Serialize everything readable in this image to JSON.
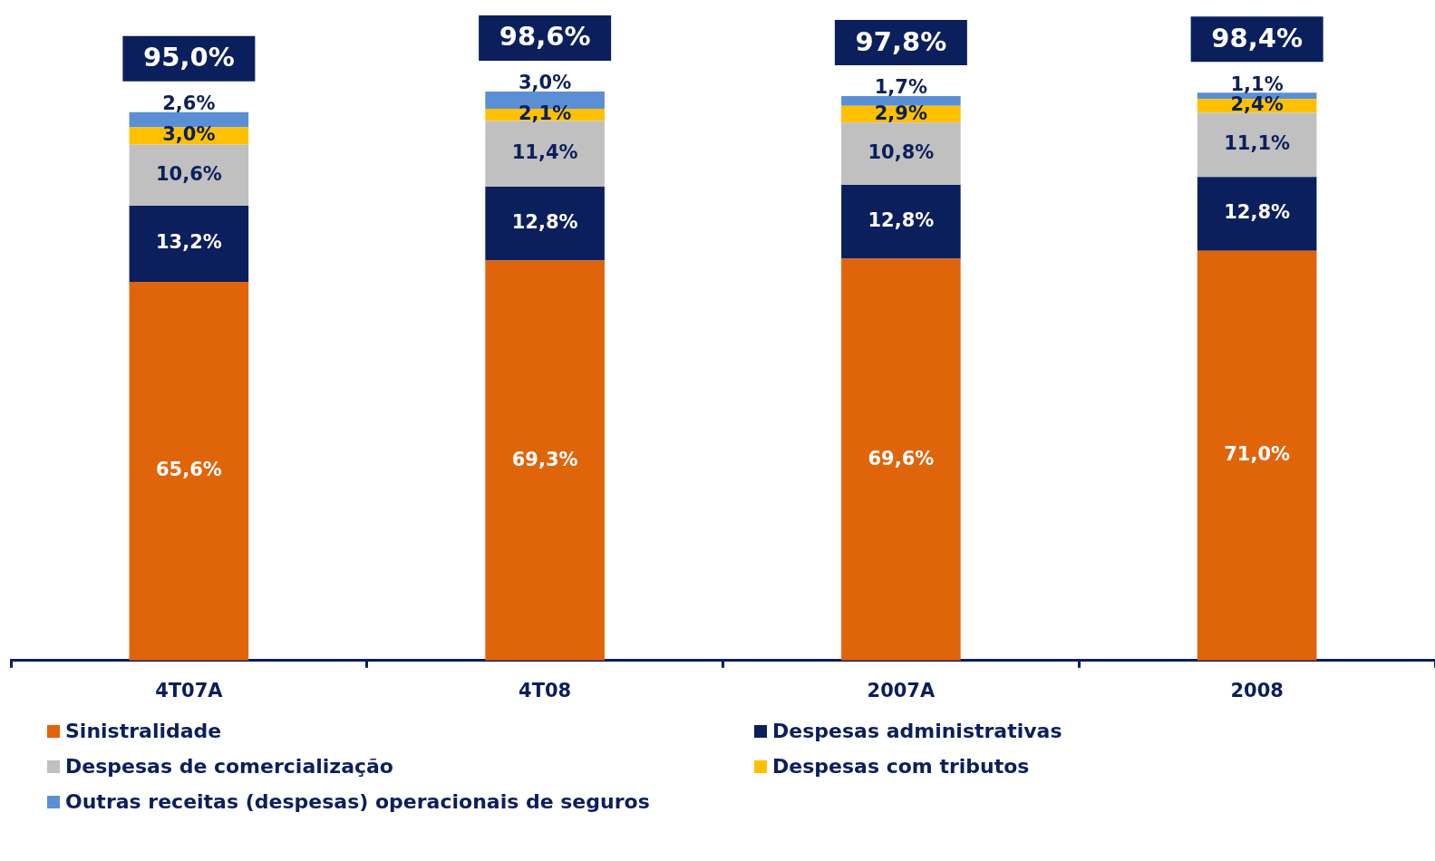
{
  "chart_data": {
    "type": "bar",
    "stacked": true,
    "categories": [
      "4T07A",
      "4T08",
      "2007A",
      "2008"
    ],
    "series": [
      {
        "name": "Sinistralidade",
        "color": "#e0640a",
        "values": [
          65.6,
          69.3,
          69.6,
          71.0
        ],
        "value_labels": [
          "65,6%",
          "69,3%",
          "69,6%",
          "71,0%"
        ]
      },
      {
        "name": "Despesas administrativas",
        "color": "#0b1f5c",
        "values": [
          13.2,
          12.8,
          12.8,
          12.8
        ],
        "value_labels": [
          "13,2%",
          "12,8%",
          "12,8%",
          "12,8%"
        ]
      },
      {
        "name": "Despesas de comercialização",
        "color": "#c0c0c0",
        "values": [
          10.6,
          11.4,
          10.8,
          11.1
        ],
        "value_labels": [
          "10,6%",
          "11,4%",
          "10,8%",
          "11,1%"
        ]
      },
      {
        "name": "Despesas com tributos",
        "color": "#ffc000",
        "values": [
          3.0,
          2.1,
          2.9,
          2.4
        ],
        "value_labels": [
          "3,0%",
          "2,1%",
          "2,9%",
          "2,4%"
        ]
      },
      {
        "name": "Outras receitas (despesas) operacionais de seguros",
        "color": "#5a8fd6",
        "values": [
          2.6,
          3.0,
          1.7,
          1.1
        ],
        "value_labels": [
          "2,6%",
          "3,0%",
          "1,7%",
          "1,1%"
        ]
      }
    ],
    "totals": [
      "95,0%",
      "98,6%",
      "97,8%",
      "98,4%"
    ],
    "legend": "bottom"
  }
}
